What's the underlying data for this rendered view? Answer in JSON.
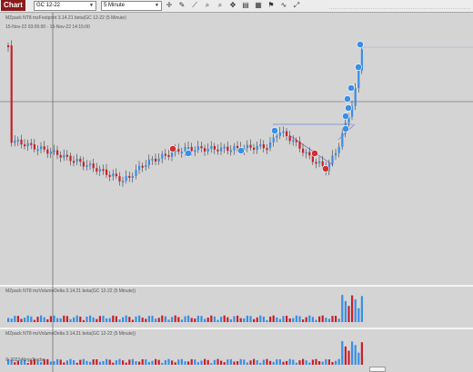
{
  "window": {
    "tab_label": "Chart"
  },
  "toolbar": {
    "instrument": "GC 12-22",
    "interval": "5 Minute",
    "icons": [
      "crosshair-icon",
      "pencil-icon",
      "ruler-icon",
      "zoom-in-icon",
      "zoom-out-icon",
      "move-icon",
      "save-icon",
      "properties-icon",
      "strategy-icon",
      "indicators-icon",
      "expand-icon"
    ]
  },
  "price_panel": {
    "indicator_label": "MZpack NT8 mzFootprint 3.14.21 beta(GC 12-22 (5 Minute)",
    "date_range": "15-Nov-22 03:05:00 - 16-Nov-22 14:15:00"
  },
  "delta_panel_1": {
    "indicator_label": "MZpack NT8 mzVolumeDelta 3.14.21 beta(GC 12-22 (5 Minute))"
  },
  "delta_panel_2": {
    "indicator_label": "MZpack NT8 mzVolumeDelta 3.14.21 beta(GC 12-22 (5 Minute))",
    "watermark": "© 2022 NinjaTrader"
  },
  "colors": {
    "up_candle": "#3a8ee6",
    "down_candle": "#c8202a",
    "panel_bg": "#d4d4d4",
    "separator": "#ffffff",
    "label_marker": "#3a8ee6",
    "label_marker_down": "#d03030"
  }
}
